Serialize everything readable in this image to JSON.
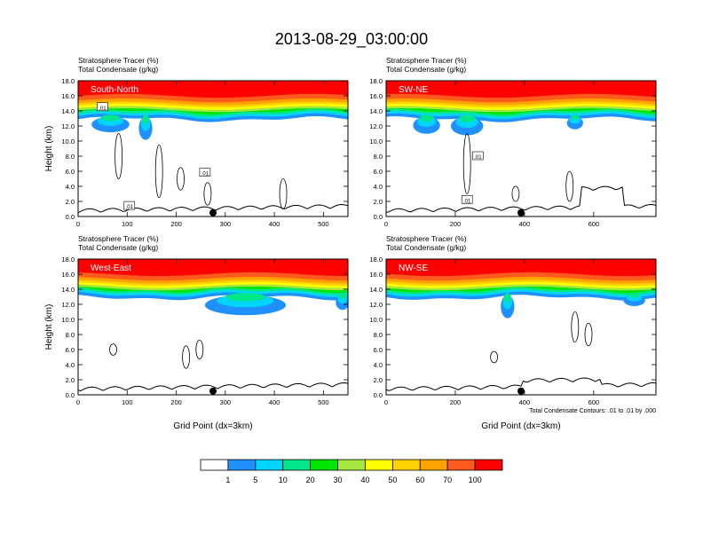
{
  "title": "2013-08-29_03:00:00",
  "colors": {
    "levels": [
      "#ffffff",
      "#1e90ff",
      "#00d5ff",
      "#00e68a",
      "#00e600",
      "#a6e63d",
      "#ffff00",
      "#ffd100",
      "#ffa200",
      "#ff5a1e",
      "#ff0000"
    ],
    "frame": "#000000"
  },
  "chart_data": [
    {
      "type": "heatmap",
      "panel_label": "South-North",
      "title_line1": "Stratosphere Tracer   (%)",
      "title_line2": "Total Condensate   (g/kg)",
      "ylabel": "Height (km)",
      "xlabel": "",
      "xlim": [
        0,
        550
      ],
      "ylim": [
        0,
        18
      ],
      "xticks": [
        0,
        100,
        200,
        300,
        400,
        500
      ],
      "yticks": [
        "0.0",
        "2.0",
        "4.0",
        "6.0",
        "8.0",
        "10.0",
        "12.0",
        "14.0",
        "16.0",
        "18.0"
      ],
      "contour_labels": [
        ".01",
        ".01",
        ".01"
      ],
      "marker_x": 275
    },
    {
      "type": "heatmap",
      "panel_label": "SW-NE",
      "title_line1": "Stratosphere Tracer   (%)",
      "title_line2": "Total Condensate   (g/kg)",
      "ylabel": "",
      "xlabel": "",
      "xlim": [
        0,
        780
      ],
      "ylim": [
        0,
        18
      ],
      "xticks": [
        0,
        200,
        400,
        600
      ],
      "yticks": [
        "0.0",
        "2.0",
        "4.0",
        "6.0",
        "8.0",
        "10.0",
        "12.0",
        "14.0",
        "16.0",
        "18.0"
      ],
      "contour_labels": [
        ".01",
        ".01"
      ],
      "marker_x": 390
    },
    {
      "type": "heatmap",
      "panel_label": "West-East",
      "title_line1": "Stratosphere Tracer   (%)",
      "title_line2": "Total Condensate   (g/kg)",
      "ylabel": "Height (km)",
      "xlabel": "Grid Point (dx=3km)",
      "xlim": [
        0,
        550
      ],
      "ylim": [
        0,
        18
      ],
      "xticks": [
        0,
        100,
        200,
        300,
        400,
        500
      ],
      "yticks": [
        "0.0",
        "2.0",
        "4.0",
        "6.0",
        "8.0",
        "10.0",
        "12.0",
        "14.0",
        "16.0",
        "18.0"
      ],
      "contour_labels": [],
      "marker_x": 275
    },
    {
      "type": "heatmap",
      "panel_label": "NW-SE",
      "title_line1": "Stratosphere Tracer   (%)",
      "title_line2": "Total Condensate   (g/kg)",
      "ylabel": "",
      "xlabel": "Grid Point (dx=3km)",
      "xlim": [
        0,
        780
      ],
      "ylim": [
        0,
        18
      ],
      "xticks": [
        0,
        200,
        400,
        600
      ],
      "yticks": [
        "0.0",
        "2.0",
        "4.0",
        "6.0",
        "8.0",
        "10.0",
        "12.0",
        "14.0",
        "16.0",
        "18.0"
      ],
      "contour_labels": [],
      "marker_x": 390,
      "footnote": "Total Condensate Contours: .01 to .01 by .000"
    }
  ],
  "colorbar": {
    "labels": [
      "1",
      "5",
      "10",
      "20",
      "30",
      "40",
      "50",
      "60",
      "70",
      "100"
    ]
  }
}
